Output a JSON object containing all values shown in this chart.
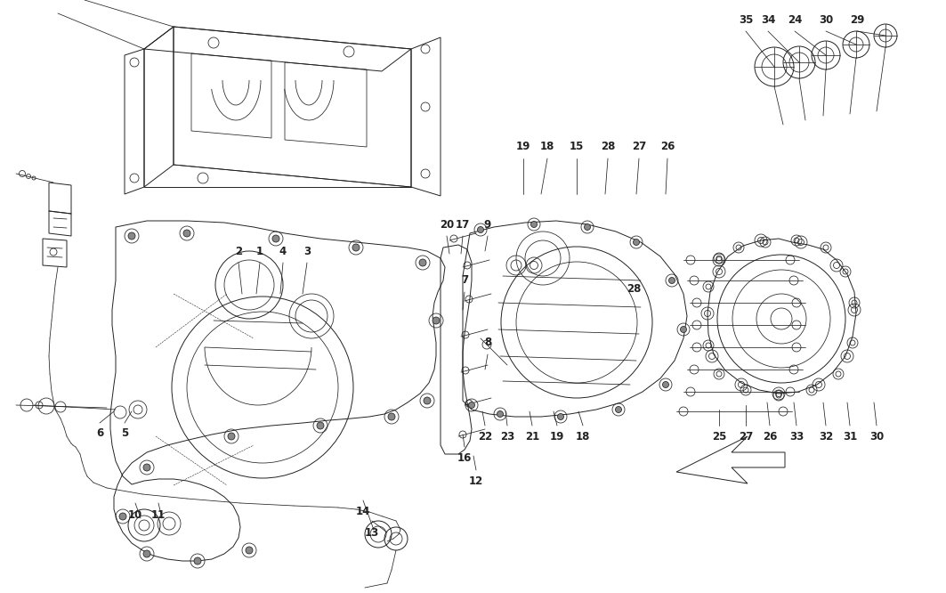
{
  "bg_color": "#ffffff",
  "line_color": "#222222",
  "fig_width": 10.63,
  "fig_height": 6.66,
  "dpi": 100,
  "lw_main": 0.9,
  "lw_thin": 0.55,
  "lw_med": 0.7,
  "label_fs": 8.5,
  "label_fs_small": 7.5
}
